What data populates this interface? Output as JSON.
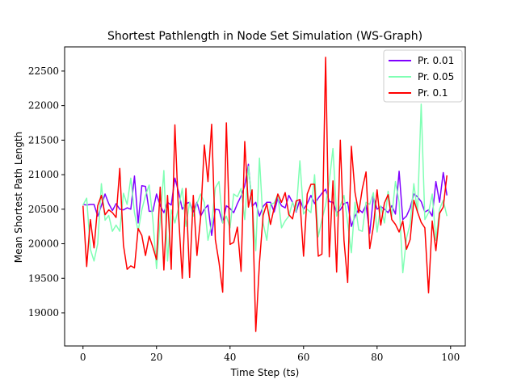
{
  "chart_data": {
    "type": "line",
    "title": "Shortest Pathlength in Node Set Simulation (WS-Graph)",
    "xlabel": "Time Step (ts)",
    "ylabel": "Mean Shortest Path Length",
    "xlim": [
      -5,
      104
    ],
    "ylim": [
      18520,
      22850
    ],
    "xticks": [
      0,
      20,
      40,
      60,
      80,
      100
    ],
    "yticks": [
      19000,
      19500,
      20000,
      20500,
      21000,
      21500,
      22000,
      22500
    ],
    "grid": false,
    "legend_position": "top-right",
    "x": [
      0,
      1,
      2,
      3,
      4,
      5,
      6,
      7,
      8,
      9,
      10,
      11,
      12,
      13,
      14,
      15,
      16,
      17,
      18,
      19,
      20,
      21,
      22,
      23,
      24,
      25,
      26,
      27,
      28,
      29,
      30,
      31,
      32,
      33,
      34,
      35,
      36,
      37,
      38,
      39,
      40,
      41,
      42,
      43,
      44,
      45,
      46,
      47,
      48,
      49,
      50,
      51,
      52,
      53,
      54,
      55,
      56,
      57,
      58,
      59,
      60,
      61,
      62,
      63,
      64,
      65,
      66,
      67,
      68,
      69,
      70,
      71,
      72,
      73,
      74,
      75,
      76,
      77,
      78,
      79,
      80,
      81,
      82,
      83,
      84,
      85,
      86,
      87,
      88,
      89,
      90,
      91,
      92,
      93,
      94,
      95,
      96,
      97,
      98,
      99
    ],
    "series": [
      {
        "name": "Pr. 0.01",
        "color": "#8000ff",
        "values": [
          20570,
          20560,
          20570,
          20570,
          20400,
          20550,
          20720,
          20580,
          20480,
          20580,
          20500,
          20490,
          20520,
          20500,
          20980,
          20300,
          20840,
          20830,
          20470,
          20470,
          20720,
          20550,
          20450,
          20600,
          20560,
          20950,
          20750,
          20500,
          20580,
          20600,
          20460,
          20600,
          20400,
          20500,
          20560,
          20120,
          20500,
          20490,
          20300,
          20550,
          20510,
          20450,
          20580,
          20690,
          20840,
          21150,
          20540,
          20600,
          20400,
          20540,
          20600,
          20600,
          20460,
          20660,
          20550,
          20520,
          20700,
          20600,
          20460,
          20640,
          20500,
          20580,
          20700,
          20580,
          20660,
          20730,
          20790,
          20610,
          20600,
          20450,
          20490,
          20580,
          20600,
          20250,
          20400,
          20500,
          20450,
          20560,
          20150,
          20680,
          20500,
          20540,
          20500,
          20450,
          20550,
          20430,
          21050,
          20350,
          20400,
          20520,
          20720,
          20680,
          20610,
          20460,
          20490,
          20400,
          20900,
          20600,
          21030,
          20700
        ]
      },
      {
        "name": "Pr. 0.05",
        "color": "#80ffb4",
        "values": [
          20560,
          20660,
          19920,
          19750,
          20000,
          20870,
          20340,
          20410,
          20180,
          20270,
          20180,
          20730,
          20570,
          20950,
          20450,
          20180,
          20490,
          20700,
          20850,
          20350,
          19640,
          20350,
          21060,
          19750,
          20490,
          20300,
          20520,
          20800,
          20250,
          20600,
          20400,
          20580,
          20720,
          20600,
          20050,
          20290,
          20810,
          20900,
          20300,
          20400,
          20230,
          20720,
          20680,
          20800,
          20350,
          21120,
          20600,
          19900,
          21240,
          20300,
          20050,
          20570,
          20590,
          20710,
          20230,
          20330,
          20400,
          20600,
          20470,
          21200,
          20430,
          20500,
          20450,
          21000,
          20100,
          20350,
          20560,
          20900,
          21380,
          20400,
          20550,
          20700,
          20300,
          19870,
          20600,
          20200,
          20180,
          20600,
          20570,
          20740,
          20170,
          20550,
          20300,
          20760,
          20400,
          20900,
          20600,
          19580,
          20080,
          20290,
          20870,
          20450,
          22020,
          20350,
          20450,
          20720,
          20050,
          20500,
          20630,
          20400
        ]
      },
      {
        "name": "Pr. 0.1",
        "color": "#ff0000",
        "values": [
          20550,
          19670,
          20350,
          19940,
          20550,
          20700,
          20420,
          20490,
          20450,
          20380,
          21090,
          19980,
          19630,
          19680,
          19650,
          20220,
          20120,
          19830,
          20110,
          19950,
          19770,
          20820,
          19620,
          20700,
          19630,
          21720,
          20420,
          19500,
          20800,
          19510,
          20700,
          19830,
          20380,
          21430,
          20900,
          21730,
          20060,
          19730,
          19300,
          21750,
          19990,
          20020,
          20240,
          19600,
          21480,
          20530,
          20780,
          18730,
          19720,
          20410,
          20580,
          20280,
          20520,
          20720,
          20600,
          20740,
          20420,
          20360,
          20620,
          20640,
          19820,
          20720,
          20860,
          20860,
          19820,
          19850,
          22700,
          19810,
          20910,
          19590,
          21500,
          20050,
          19440,
          21410,
          20740,
          20450,
          20800,
          21040,
          19930,
          20250,
          20780,
          20270,
          20590,
          20710,
          20350,
          20280,
          20170,
          20330,
          19920,
          20060,
          20630,
          20460,
          20310,
          20230,
          19290,
          20330,
          19900,
          20440,
          20530,
          20990
        ]
      }
    ]
  }
}
